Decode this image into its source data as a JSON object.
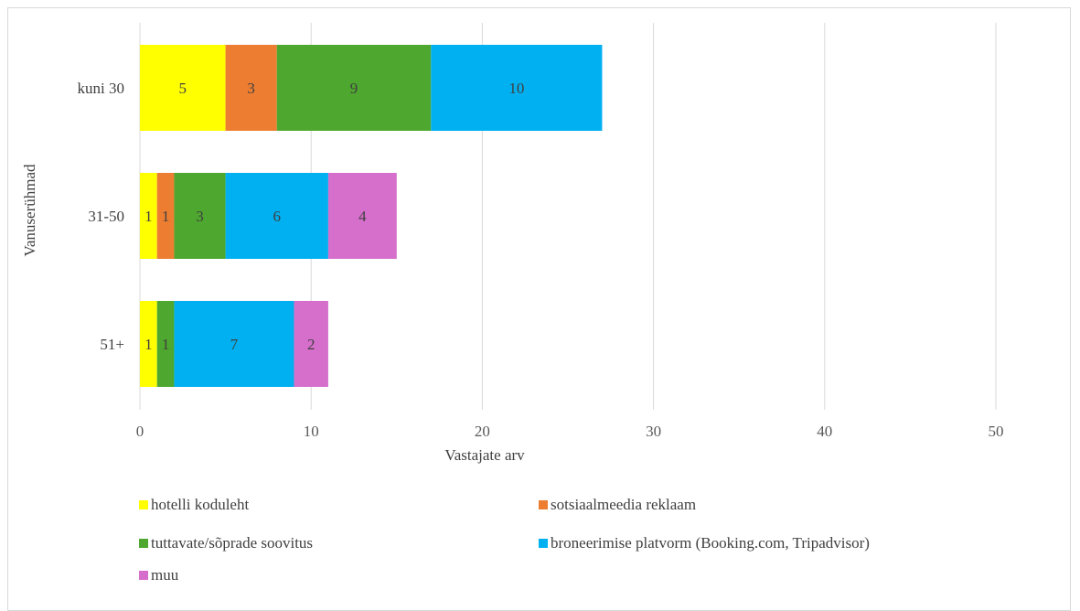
{
  "chart_data": {
    "type": "bar",
    "orientation": "horizontal",
    "stacked": true,
    "categories": [
      "kuni 30",
      "31-50",
      "51+"
    ],
    "series": [
      {
        "name": "hotelli koduleht",
        "color": "#ffff00",
        "values": [
          5,
          1,
          1
        ]
      },
      {
        "name": "sotsiaalmeedia reklaam",
        "color": "#ed7d31",
        "values": [
          3,
          1,
          0
        ]
      },
      {
        "name": "tuttavate/sõprade soovitus",
        "color": "#4ea72e",
        "values": [
          9,
          3,
          1
        ]
      },
      {
        "name": "broneerimise platvorm (Booking.com, Tripadvisor)",
        "color": "#00b0f0",
        "values": [
          10,
          6,
          7
        ]
      },
      {
        "name": "muu",
        "color": "#d66fcb",
        "values": [
          0,
          4,
          2
        ]
      }
    ],
    "xlabel": "Vastajate arv",
    "ylabel": "Vanuserühmad",
    "xlim": [
      0,
      50
    ],
    "xticks": [
      0,
      10,
      20,
      30,
      40,
      50
    ],
    "grid": "vertical",
    "legend_position": "bottom"
  }
}
